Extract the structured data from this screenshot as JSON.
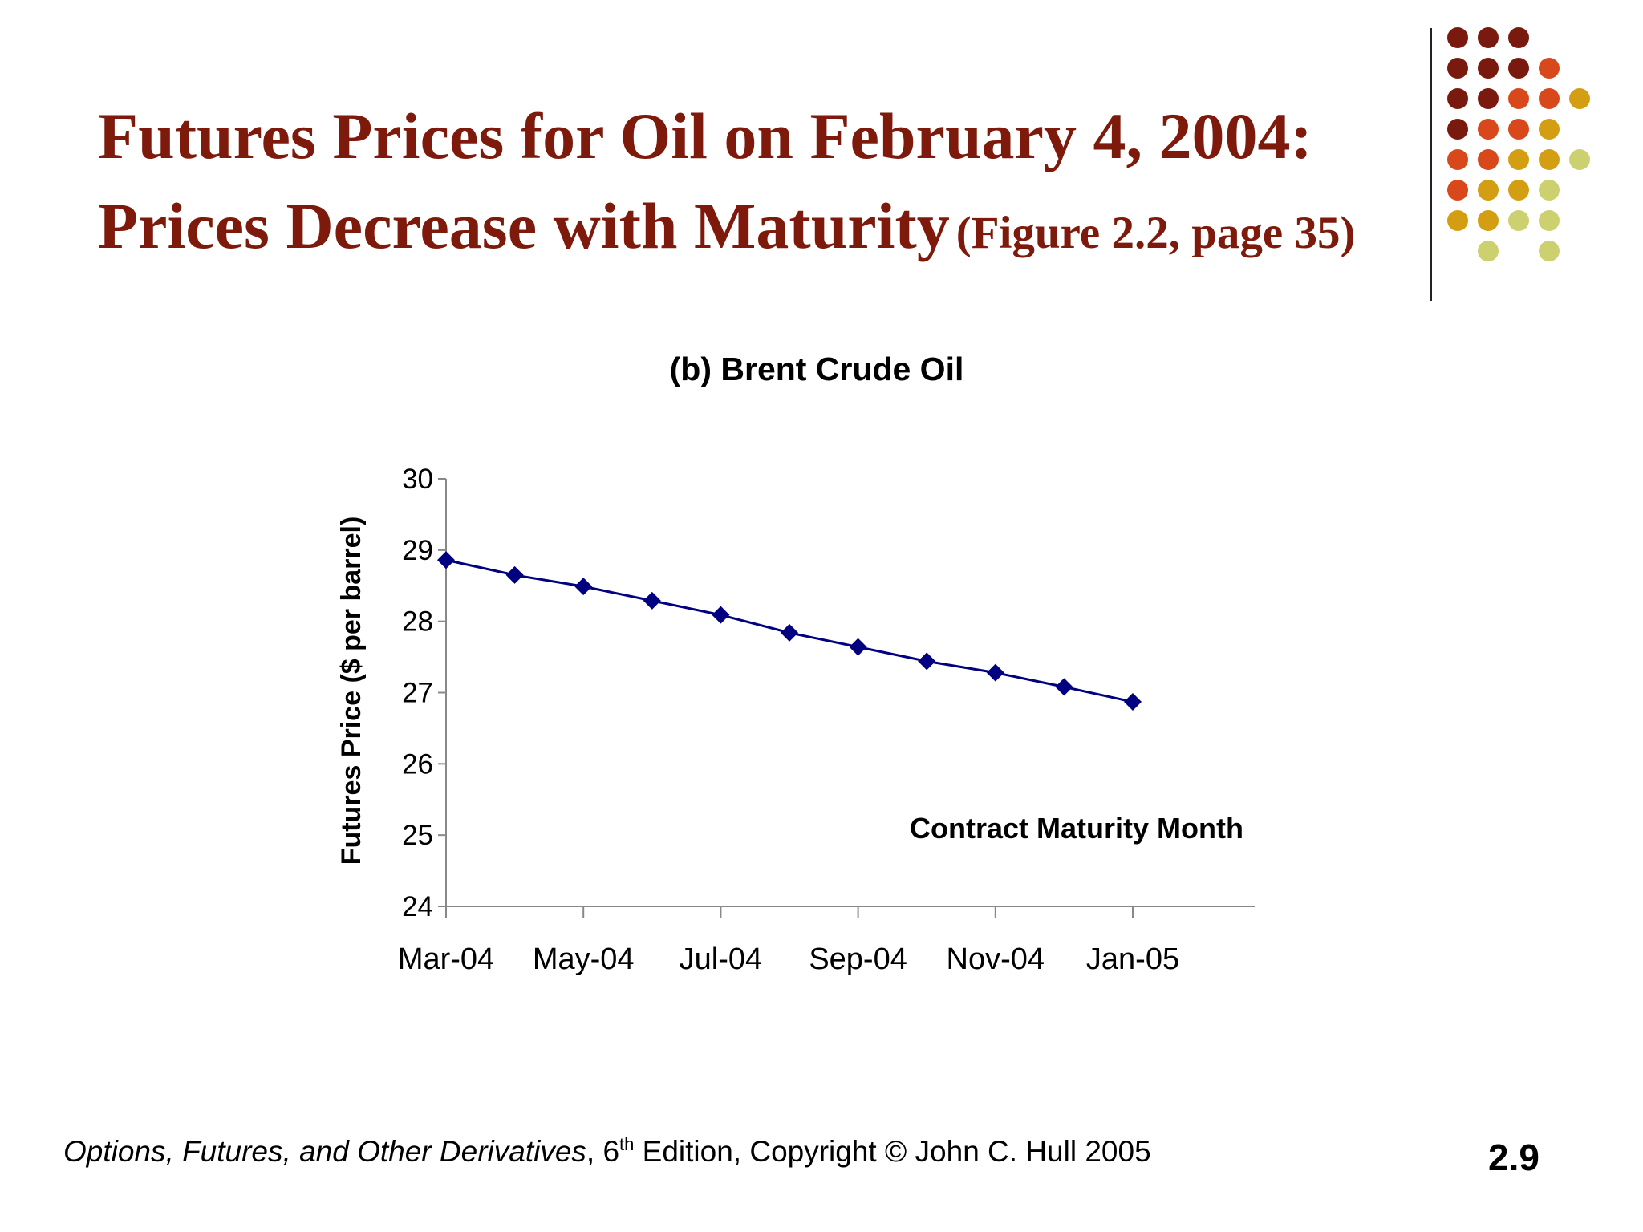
{
  "slide": {
    "title_line1": "Futures Prices for Oil on February 4, 2004:",
    "title_line2": "Prices Decrease with Maturity",
    "title_ref": "(Figure 2.2, page 35)",
    "footer_book": "Options, Futures, and Other Derivatives",
    "footer_sep": ", ",
    "footer_edition_num": "6",
    "footer_edition_sup": "th",
    "footer_rest": " Edition, Copyright © John C. Hull 2005",
    "page_number": "2.9"
  },
  "colors": {
    "title": "#7d1a0c",
    "series": "#000080",
    "dots": [
      "#7a1a0e",
      "#d8481a",
      "#d49e12",
      "#cdd06e"
    ]
  },
  "chart_data": {
    "type": "line",
    "title": "(b) Brent Crude Oil",
    "xlabel": "Contract Maturity Month",
    "ylabel": "Futures Price ($ per barrel)",
    "ylim": [
      24,
      30
    ],
    "yticks": [
      "24",
      "25",
      "26",
      "27",
      "28",
      "29",
      "30"
    ],
    "xticks": [
      "Mar-04",
      "May-04",
      "Jul-04",
      "Sep-04",
      "Nov-04",
      "Jan-05"
    ],
    "grid": false,
    "x": [
      "Mar-04",
      "Apr-04",
      "May-04",
      "Jun-04",
      "Jul-04",
      "Aug-04",
      "Sep-04",
      "Oct-04",
      "Nov-04",
      "Dec-04",
      "Jan-05"
    ],
    "series": [
      {
        "values": [
          28.86,
          28.65,
          28.49,
          28.29,
          28.09,
          27.84,
          27.64,
          27.44,
          27.28,
          27.08,
          26.87
        ]
      }
    ]
  }
}
